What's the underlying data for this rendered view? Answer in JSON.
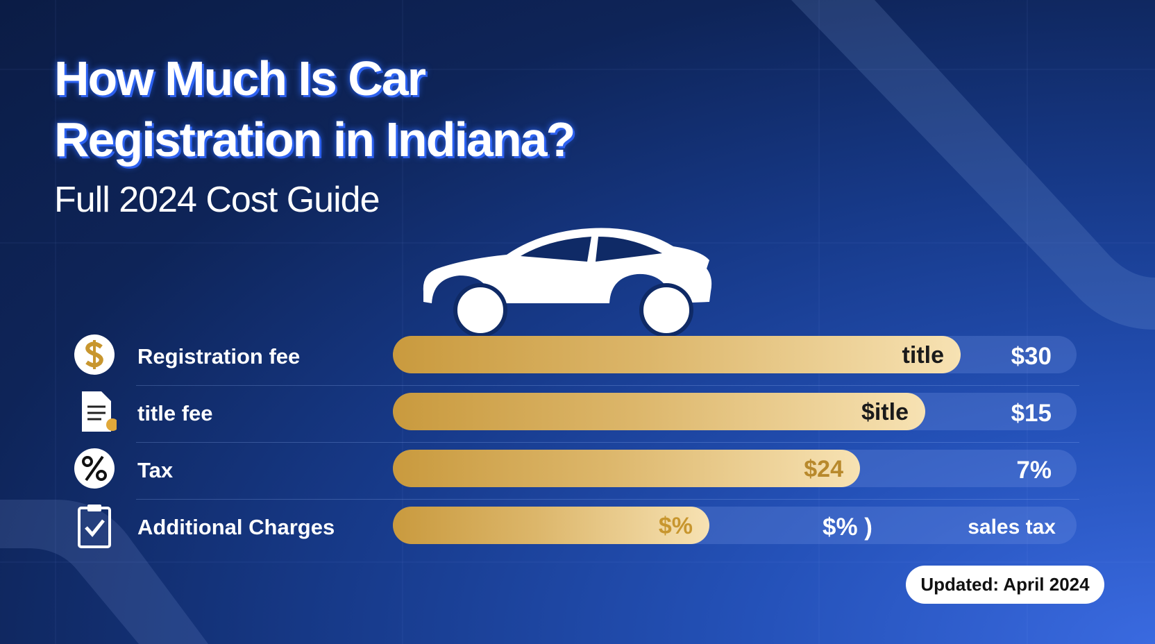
{
  "header": {
    "title_lines": [
      "How Much Is Car",
      "Registration in Indiana?"
    ],
    "subtitle": "Full 2024 Cost Guide"
  },
  "rows": [
    {
      "label": "Registration fee",
      "bar_text": "title",
      "amount": "$30"
    },
    {
      "label": "title fee",
      "bar_text": "$itle",
      "amount": "$15"
    },
    {
      "label": "Tax",
      "bar_text": "$24",
      "amount": "7%"
    },
    {
      "label": "Additional Charges",
      "bar_text": "$%",
      "after_text": "$% )",
      "amount": "sales tax"
    }
  ],
  "footer": {
    "badge": "Updated: April 2024"
  }
}
